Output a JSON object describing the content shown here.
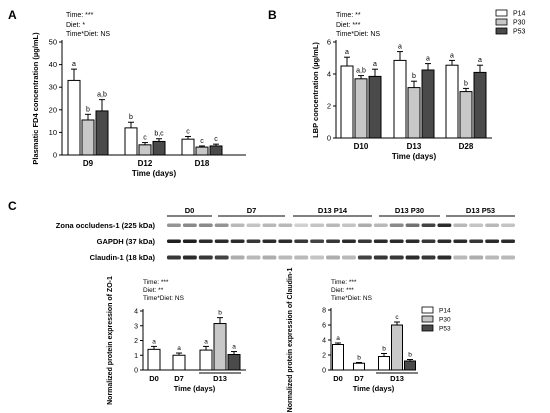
{
  "colors": {
    "P14": "#ffffff",
    "P30": "#c8c8c8",
    "P53": "#4a4a4a"
  },
  "legend": [
    "P14",
    "P30",
    "P53"
  ],
  "panels": {
    "A": "A",
    "B": "B",
    "C": "C"
  },
  "blot": {
    "headers": [
      "D0",
      "D7",
      "D13 P14",
      "D13 P30",
      "D13 P53"
    ],
    "rows": [
      "Zona occludens-1 (225 kDa)",
      "GAPDH (37 kDa)",
      "Claudin-1 (18 kDa)"
    ]
  },
  "chart_data": [
    {
      "id": "A",
      "type": "bar",
      "stats": [
        "Time: ***",
        "Diet: *",
        "Time*Diet: NS"
      ],
      "xlabel": "Time (days)",
      "ylabel": "Plasmatic FD4 concentration (µg/mL)",
      "ylim": [
        0,
        50
      ],
      "yticks": [
        0,
        10,
        20,
        30,
        40,
        50
      ],
      "groups": [
        {
          "label": "D9",
          "bars": [
            {
              "series": "P14",
              "value": 33,
              "err": 5,
              "letter": "a"
            },
            {
              "series": "P30",
              "value": 15.5,
              "err": 2.5,
              "letter": "b"
            },
            {
              "series": "P53",
              "value": 19.5,
              "err": 5,
              "letter": "a,b"
            }
          ]
        },
        {
          "label": "D12",
          "bars": [
            {
              "series": "P14",
              "value": 12,
              "err": 2.5,
              "letter": "b"
            },
            {
              "series": "P30",
              "value": 4.5,
              "err": 1,
              "letter": "c"
            },
            {
              "series": "P53",
              "value": 6,
              "err": 1.2,
              "letter": "b,c"
            }
          ]
        },
        {
          "label": "D18",
          "bars": [
            {
              "series": "P14",
              "value": 7,
              "err": 1.2,
              "letter": "c"
            },
            {
              "series": "P30",
              "value": 3.5,
              "err": 0.5,
              "letter": "c"
            },
            {
              "series": "P53",
              "value": 4,
              "err": 0.8,
              "letter": "c"
            }
          ]
        }
      ]
    },
    {
      "id": "B",
      "type": "bar",
      "stats": [
        "Time: **",
        "Diet: ***",
        "Time*Diet: NS"
      ],
      "xlabel": "Time (days)",
      "ylabel": "LBP concentration (µg/mL)",
      "ylim": [
        0,
        6
      ],
      "yticks": [
        0,
        2,
        4,
        6
      ],
      "groups": [
        {
          "label": "D10",
          "bars": [
            {
              "series": "P14",
              "value": 4.5,
              "err": 0.55,
              "letter": "a"
            },
            {
              "series": "P30",
              "value": 3.7,
              "err": 0.2,
              "letter": "a,b"
            },
            {
              "series": "P53",
              "value": 3.85,
              "err": 0.45,
              "letter": "a"
            }
          ]
        },
        {
          "label": "D13",
          "bars": [
            {
              "series": "P14",
              "value": 4.85,
              "err": 0.55,
              "letter": "a"
            },
            {
              "series": "P30",
              "value": 3.15,
              "err": 0.4,
              "letter": "b"
            },
            {
              "series": "P53",
              "value": 4.25,
              "err": 0.4,
              "letter": "a"
            }
          ]
        },
        {
          "label": "D28",
          "bars": [
            {
              "series": "P14",
              "value": 4.55,
              "err": 0.3,
              "letter": "a"
            },
            {
              "series": "P30",
              "value": 2.9,
              "err": 0.2,
              "letter": "b"
            },
            {
              "series": "P53",
              "value": 4.1,
              "err": 0.45,
              "letter": "a"
            }
          ]
        }
      ]
    },
    {
      "id": "C1",
      "type": "bar",
      "stats": [
        "Time: ***",
        "Diet: **",
        "Time*Diet: NS"
      ],
      "xlabel": "Time (days)",
      "ylabel": "Normalized protein expression of ZO-1",
      "ylim": [
        0,
        4
      ],
      "yticks": [
        0,
        1,
        2,
        3,
        4
      ],
      "groups": [
        {
          "label": "D0",
          "bars": [
            {
              "series": "P14",
              "value": 1.4,
              "err": 0.2,
              "letter": "a"
            }
          ]
        },
        {
          "label": "D7",
          "bars": [
            {
              "series": "P14",
              "value": 1.0,
              "err": 0.15,
              "letter": "a"
            }
          ]
        },
        {
          "label": "D13",
          "bars": [
            {
              "series": "P14",
              "value": 1.35,
              "err": 0.25,
              "letter": "a"
            },
            {
              "series": "P30",
              "value": 3.15,
              "err": 0.4,
              "letter": "b"
            },
            {
              "series": "P53",
              "value": 1.05,
              "err": 0.2,
              "letter": "a"
            }
          ]
        }
      ]
    },
    {
      "id": "C2",
      "type": "bar",
      "stats": [
        "Time: ***",
        "Diet: ***",
        "Time*Diet: NS"
      ],
      "xlabel": "Time (days)",
      "ylabel": "Normalized protein expression of Claudin-1",
      "ylim": [
        0,
        8
      ],
      "yticks": [
        0,
        2,
        4,
        6,
        8
      ],
      "groups": [
        {
          "label": "D0",
          "bars": [
            {
              "series": "P14",
              "value": 3.4,
              "err": 0.2,
              "letter": "a"
            }
          ]
        },
        {
          "label": "D7",
          "bars": [
            {
              "series": "P14",
              "value": 0.9,
              "err": 0.1,
              "letter": "b"
            }
          ]
        },
        {
          "label": "D13",
          "bars": [
            {
              "series": "P14",
              "value": 1.8,
              "err": 0.4,
              "letter": "b"
            },
            {
              "series": "P30",
              "value": 6.0,
              "err": 0.4,
              "letter": "c"
            },
            {
              "series": "P53",
              "value": 1.2,
              "err": 0.2,
              "letter": "b"
            }
          ]
        }
      ]
    }
  ]
}
